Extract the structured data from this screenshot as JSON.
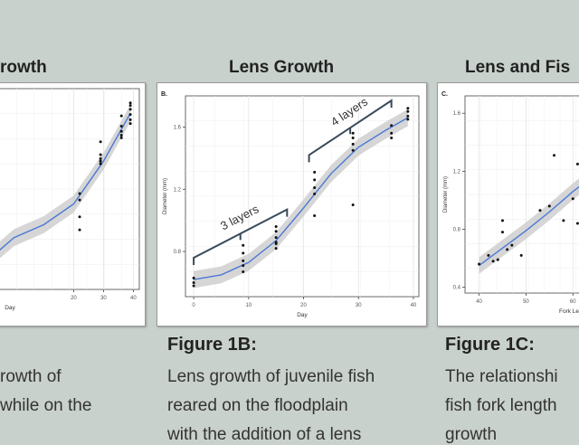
{
  "headings": [
    "rowth",
    "Lens Growth",
    "Lens and Fis"
  ],
  "captions": [
    {
      "title": "",
      "lines": [
        "rowth of",
        "while on the"
      ]
    },
    {
      "title": "Figure 1B:",
      "lines": [
        "Lens growth of juvenile fish",
        "reared on the floodplain",
        "with the addition of a lens"
      ]
    },
    {
      "title": "Figure 1C:",
      "lines": [
        "The relationshi",
        "fish fork length",
        "growth"
      ]
    }
  ],
  "colors": {
    "background": "#c9d1cc",
    "fit_line": "#4a78d6",
    "ribbon": "#c8c8c8",
    "brace": "#3a4a5a",
    "points": "#111111"
  },
  "chart_data": [
    {
      "type": "scatter",
      "panel_label": "",
      "xlabel": "Day",
      "ylabel": "",
      "xlim": [
        -5,
        42
      ],
      "ylim": [
        0.3,
        1.85
      ],
      "xticks": [
        20,
        30,
        40
      ],
      "xtick_labels": [
        "20",
        "30",
        "40"
      ],
      "yticks": [],
      "ytick_labels": [],
      "points": [
        [
          22,
          0.86
        ],
        [
          22,
          0.99
        ],
        [
          22,
          1.04
        ],
        [
          22,
          0.76
        ],
        [
          29,
          1.44
        ],
        [
          29,
          1.34
        ],
        [
          29,
          1.31
        ],
        [
          29,
          1.29
        ],
        [
          29,
          1.27
        ],
        [
          36,
          1.52
        ],
        [
          36,
          1.56
        ],
        [
          36,
          1.64
        ],
        [
          36,
          1.49
        ],
        [
          36,
          1.47
        ],
        [
          39,
          1.61
        ],
        [
          39,
          1.65
        ],
        [
          39,
          1.69
        ],
        [
          39,
          1.72
        ],
        [
          39,
          1.74
        ],
        [
          39,
          1.58
        ]
      ],
      "fit": [
        [
          -5,
          0.6
        ],
        [
          0,
          0.7
        ],
        [
          10,
          0.8
        ],
        [
          20,
          0.96
        ],
        [
          30,
          1.29
        ],
        [
          39,
          1.66
        ]
      ],
      "grid": true
    },
    {
      "type": "scatter",
      "panel_label": "B.",
      "xlabel": "Day",
      "ylabel": "Diameter (mm)",
      "xlim": [
        -1.5,
        41
      ],
      "ylim": [
        0.51,
        1.8
      ],
      "xticks": [
        0,
        10,
        20,
        30,
        40
      ],
      "xtick_labels": [
        "0",
        "10",
        "20",
        "30",
        "40"
      ],
      "yticks": [
        0.8,
        1.2,
        1.6
      ],
      "ytick_labels": [
        "0.8",
        "1.2",
        "1.6"
      ],
      "points": [
        [
          0,
          0.63
        ],
        [
          0,
          0.6
        ],
        [
          0,
          0.58
        ],
        [
          9,
          0.84
        ],
        [
          9,
          0.79
        ],
        [
          9,
          0.74
        ],
        [
          9,
          0.71
        ],
        [
          9,
          0.67
        ],
        [
          15,
          0.96
        ],
        [
          15,
          0.93
        ],
        [
          15,
          0.89
        ],
        [
          15,
          0.85
        ],
        [
          15,
          0.82
        ],
        [
          15,
          0.86
        ],
        [
          22,
          1.31
        ],
        [
          22,
          1.26
        ],
        [
          22,
          1.21
        ],
        [
          22,
          1.17
        ],
        [
          22,
          1.03
        ],
        [
          29,
          1.56
        ],
        [
          29,
          1.53
        ],
        [
          29,
          1.49
        ],
        [
          29,
          1.1
        ],
        [
          29,
          1.45
        ],
        [
          36,
          1.61
        ],
        [
          36,
          1.56
        ],
        [
          36,
          1.53
        ],
        [
          39,
          1.72
        ],
        [
          39,
          1.7
        ],
        [
          39,
          1.67
        ],
        [
          39,
          1.65
        ]
      ],
      "fit": [
        [
          0,
          0.62
        ],
        [
          5,
          0.65
        ],
        [
          10,
          0.73
        ],
        [
          15,
          0.87
        ],
        [
          20,
          1.08
        ],
        [
          25,
          1.3
        ],
        [
          30,
          1.47
        ],
        [
          35,
          1.58
        ],
        [
          39,
          1.66
        ]
      ],
      "annotations": [
        {
          "text": "3 layers",
          "x_start": 0,
          "x_end": 17,
          "y_start": 0.76,
          "y_end": 1.07
        },
        {
          "text": "4 layers",
          "x_start": 21,
          "x_end": 36,
          "y_start": 1.42,
          "y_end": 1.77
        }
      ],
      "grid": true
    },
    {
      "type": "scatter",
      "panel_label": "C.",
      "xlabel": "Fork Len",
      "ylabel": "Diameter (mm)",
      "xlim": [
        37,
        64
      ],
      "ylim": [
        0.36,
        1.72
      ],
      "xticks": [
        40,
        50,
        60
      ],
      "xtick_labels": [
        "40",
        "50",
        "60"
      ],
      "yticks": [
        0.4,
        0.8,
        1.2,
        1.6
      ],
      "ytick_labels": [
        "0.4",
        "0.8",
        "1.2",
        "1.6"
      ],
      "points": [
        [
          40,
          0.56
        ],
        [
          42,
          0.62
        ],
        [
          43,
          0.58
        ],
        [
          44,
          0.59
        ],
        [
          45,
          0.78
        ],
        [
          45,
          0.86
        ],
        [
          46,
          0.66
        ],
        [
          47,
          0.69
        ],
        [
          49,
          0.62
        ],
        [
          53,
          0.93
        ],
        [
          55,
          0.96
        ],
        [
          56,
          1.31
        ],
        [
          58,
          0.86
        ],
        [
          60,
          1.01
        ],
        [
          61,
          1.25
        ],
        [
          61,
          0.84
        ]
      ],
      "fit": [
        [
          40,
          0.55
        ],
        [
          45,
          0.67
        ],
        [
          50,
          0.79
        ],
        [
          55,
          0.92
        ],
        [
          60,
          1.06
        ],
        [
          64,
          1.16
        ]
      ],
      "grid": true
    }
  ]
}
